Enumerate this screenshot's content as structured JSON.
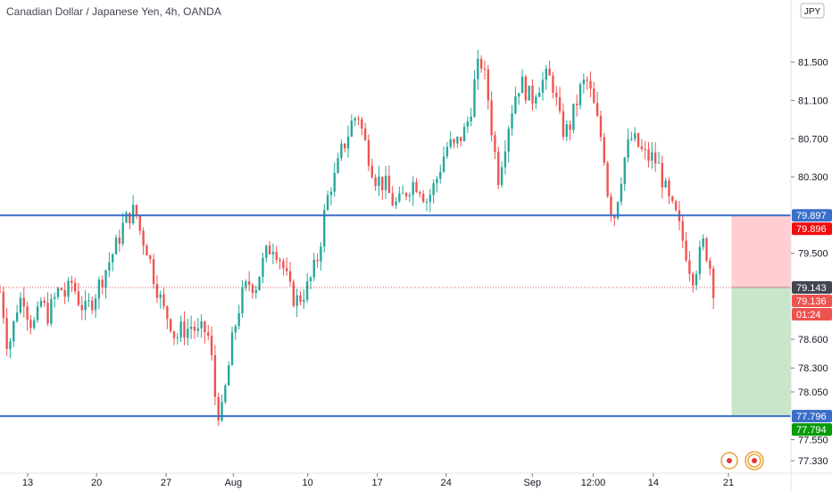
{
  "chart_data": {
    "type": "candlestick",
    "title": "Canadian Dollar / Japanese Yen, 4h, OANDA",
    "currency": "JPY",
    "ylim": [
      77.2,
      82.15
    ],
    "y_ticks": [
      "81.500",
      "81.100",
      "80.700",
      "80.300",
      "79.500",
      "78.600",
      "78.300",
      "78.050",
      "77.550",
      "77.330"
    ],
    "y_tick_values": [
      81.5,
      81.1,
      80.7,
      80.3,
      79.5,
      78.6,
      78.3,
      78.05,
      77.55,
      77.33
    ],
    "x_ticks": [
      {
        "label": "13",
        "pos": 0.035
      },
      {
        "label": "20",
        "pos": 0.122
      },
      {
        "label": "27",
        "pos": 0.21
      },
      {
        "label": "Aug",
        "pos": 0.295
      },
      {
        "label": "10",
        "pos": 0.389
      },
      {
        "label": "17",
        "pos": 0.477
      },
      {
        "label": "24",
        "pos": 0.564
      },
      {
        "label": "Sep",
        "pos": 0.673
      },
      {
        "label": "12:00",
        "pos": 0.75
      },
      {
        "label": "14",
        "pos": 0.826
      },
      {
        "label": "21",
        "pos": 0.921
      }
    ],
    "close_path": [
      [
        0.0,
        79.1
      ],
      [
        0.004,
        78.9
      ],
      [
        0.01,
        78.5
      ],
      [
        0.016,
        78.7
      ],
      [
        0.023,
        79.0
      ],
      [
        0.03,
        79.05
      ],
      [
        0.037,
        78.8
      ],
      [
        0.045,
        78.75
      ],
      [
        0.052,
        79.0
      ],
      [
        0.06,
        78.85
      ],
      [
        0.068,
        79.0
      ],
      [
        0.076,
        79.15
      ],
      [
        0.083,
        79.05
      ],
      [
        0.091,
        79.2
      ],
      [
        0.1,
        79.0
      ],
      [
        0.108,
        78.9
      ],
      [
        0.116,
        79.0
      ],
      [
        0.124,
        79.15
      ],
      [
        0.132,
        79.3
      ],
      [
        0.14,
        79.45
      ],
      [
        0.148,
        79.6
      ],
      [
        0.156,
        79.8
      ],
      [
        0.163,
        79.9
      ],
      [
        0.171,
        79.95
      ],
      [
        0.178,
        79.7
      ],
      [
        0.186,
        79.55
      ],
      [
        0.193,
        79.3
      ],
      [
        0.2,
        79.1
      ],
      [
        0.207,
        78.9
      ],
      [
        0.215,
        78.8
      ],
      [
        0.222,
        78.6
      ],
      [
        0.229,
        78.7
      ],
      [
        0.236,
        78.7
      ],
      [
        0.243,
        78.75
      ],
      [
        0.25,
        78.65
      ],
      [
        0.258,
        78.7
      ],
      [
        0.265,
        78.6
      ],
      [
        0.272,
        78.0
      ],
      [
        0.279,
        77.75
      ],
      [
        0.287,
        78.2
      ],
      [
        0.294,
        78.6
      ],
      [
        0.301,
        78.9
      ],
      [
        0.308,
        79.1
      ],
      [
        0.316,
        79.2
      ],
      [
        0.323,
        79.15
      ],
      [
        0.33,
        79.35
      ],
      [
        0.337,
        79.5
      ],
      [
        0.345,
        79.6
      ],
      [
        0.352,
        79.5
      ],
      [
        0.36,
        79.3
      ],
      [
        0.367,
        79.1
      ],
      [
        0.374,
        79.0
      ],
      [
        0.381,
        79.05
      ],
      [
        0.389,
        79.15
      ],
      [
        0.396,
        79.3
      ],
      [
        0.403,
        79.5
      ],
      [
        0.41,
        79.9
      ],
      [
        0.417,
        80.2
      ],
      [
        0.424,
        80.3
      ],
      [
        0.431,
        80.55
      ],
      [
        0.438,
        80.7
      ],
      [
        0.446,
        80.9
      ],
      [
        0.453,
        80.95
      ],
      [
        0.46,
        80.7
      ],
      [
        0.467,
        80.5
      ],
      [
        0.474,
        80.3
      ],
      [
        0.481,
        80.25
      ],
      [
        0.488,
        80.2
      ],
      [
        0.495,
        80.05
      ],
      [
        0.503,
        80.0
      ],
      [
        0.51,
        80.1
      ],
      [
        0.517,
        80.2
      ],
      [
        0.524,
        80.25
      ],
      [
        0.531,
        80.2
      ],
      [
        0.539,
        80.05
      ],
      [
        0.546,
        80.15
      ],
      [
        0.553,
        80.3
      ],
      [
        0.56,
        80.5
      ],
      [
        0.567,
        80.65
      ],
      [
        0.574,
        80.6
      ],
      [
        0.581,
        80.7
      ],
      [
        0.589,
        80.8
      ],
      [
        0.596,
        81.05
      ],
      [
        0.602,
        81.4
      ],
      [
        0.609,
        81.5
      ],
      [
        0.616,
        81.2
      ],
      [
        0.623,
        80.7
      ],
      [
        0.63,
        80.3
      ],
      [
        0.637,
        80.6
      ],
      [
        0.644,
        80.9
      ],
      [
        0.651,
        81.15
      ],
      [
        0.658,
        81.3
      ],
      [
        0.665,
        81.2
      ],
      [
        0.672,
        81.1
      ],
      [
        0.679,
        81.25
      ],
      [
        0.686,
        81.3
      ],
      [
        0.693,
        81.35
      ],
      [
        0.7,
        81.25
      ],
      [
        0.707,
        80.9
      ],
      [
        0.714,
        80.75
      ],
      [
        0.721,
        80.85
      ],
      [
        0.728,
        81.05
      ],
      [
        0.735,
        81.25
      ],
      [
        0.742,
        81.3
      ],
      [
        0.749,
        81.1
      ],
      [
        0.756,
        80.85
      ],
      [
        0.763,
        80.6
      ],
      [
        0.77,
        80.0
      ],
      [
        0.777,
        79.9
      ],
      [
        0.784,
        80.25
      ],
      [
        0.791,
        80.55
      ],
      [
        0.798,
        80.7
      ],
      [
        0.805,
        80.65
      ],
      [
        0.812,
        80.55
      ],
      [
        0.819,
        80.5
      ],
      [
        0.826,
        80.5
      ],
      [
        0.833,
        80.4
      ],
      [
        0.84,
        80.2
      ],
      [
        0.847,
        80.0
      ],
      [
        0.854,
        79.9
      ],
      [
        0.861,
        79.7
      ],
      [
        0.868,
        79.5
      ],
      [
        0.875,
        79.25
      ],
      [
        0.882,
        79.4
      ],
      [
        0.889,
        79.6
      ],
      [
        0.896,
        79.45
      ],
      [
        0.902,
        79.14
      ]
    ],
    "trend_lines": [
      {
        "value": 79.897,
        "color": "#3a6fc9"
      },
      {
        "value": 77.796,
        "color": "#3a6fc9"
      }
    ],
    "price_labels": [
      {
        "text": "79.897",
        "value": 79.897,
        "color": "#3a6fc9"
      },
      {
        "text": "79.896",
        "value": 79.896,
        "color": "#f20c0c"
      },
      {
        "text": "79.143",
        "value": 79.143,
        "color": "#434651"
      },
      {
        "text": "79.136",
        "value": 79.136,
        "color": "#ef5350"
      },
      {
        "text": "01:24",
        "value": 79.136,
        "color": "#ef5350"
      },
      {
        "text": "77.796",
        "value": 77.796,
        "color": "#3a6fc9"
      },
      {
        "text": "77.794",
        "value": 77.794,
        "color": "#0a9b0a"
      }
    ],
    "current_price": 79.143,
    "position": {
      "entry": 79.143,
      "stop": 79.897,
      "target": 77.796,
      "start_pos": 0.925
    },
    "colors": {
      "up": "#26a69a",
      "down": "#ef5350",
      "axis": "#e0e3eb",
      "risk": "#ffcdd2",
      "reward": "#c8e6c9"
    }
  }
}
